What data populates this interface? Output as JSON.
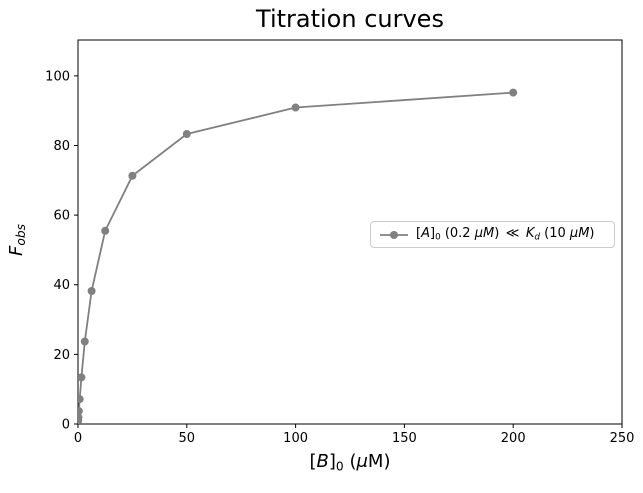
{
  "title": "Titration curves",
  "colors": {
    "series": "#808080",
    "spine": "#000000",
    "tick_label": "#000000",
    "legend_border": "#cccccc",
    "background": "#ffffff"
  },
  "chart_data": {
    "type": "line",
    "title": "Titration curves",
    "xlabel": "[B]0 (μM)",
    "ylabel": "F_obs",
    "xlim": [
      0,
      250
    ],
    "ylim": [
      0,
      110.3
    ],
    "xticks": [
      0,
      50,
      100,
      150,
      200,
      250
    ],
    "yticks": [
      0,
      20,
      40,
      60,
      80,
      100
    ],
    "grid": false,
    "legend_position": "center right",
    "series": [
      {
        "name": "[A]0 (0.2 μM) ≪ K_d (10 μM)",
        "color": "#808080",
        "marker": "circle",
        "marker_radius": 4,
        "line_width": 1.8,
        "x": [
          0.098,
          0.195,
          0.391,
          0.781,
          1.563,
          3.125,
          6.25,
          12.5,
          25,
          50,
          100,
          200
        ],
        "y": [
          0.97,
          1.91,
          3.72,
          7.16,
          13.4,
          23.7,
          38.2,
          55.5,
          71.3,
          83.3,
          90.9,
          95.2
        ]
      }
    ]
  },
  "rich_labels": {
    "xlabel_parts": [
      {
        "t": "["
      },
      {
        "t": "B",
        "i": 1
      },
      {
        "t": "]"
      },
      {
        "t": "0",
        "s": 1
      },
      {
        "t": " ("
      },
      {
        "t": "μ",
        "i": 1
      },
      {
        "t": "M)"
      }
    ],
    "ylabel_parts": [
      {
        "t": "F",
        "i": 1
      },
      {
        "t": "obs",
        "i": 1,
        "s": 1
      }
    ],
    "legend_parts": [
      {
        "t": "["
      },
      {
        "t": "A",
        "i": 1
      },
      {
        "t": "]"
      },
      {
        "t": "0",
        "s": 1
      },
      {
        "t": " (0.2 "
      },
      {
        "t": "μM",
        "i": 1
      },
      {
        "t": ") "
      },
      {
        "t": "≪"
      },
      {
        "t": " "
      },
      {
        "t": "K",
        "i": 1
      },
      {
        "t": "d",
        "i": 1,
        "s": 1
      },
      {
        "t": " (10 "
      },
      {
        "t": "μM",
        "i": 1
      },
      {
        "t": ")"
      }
    ]
  }
}
